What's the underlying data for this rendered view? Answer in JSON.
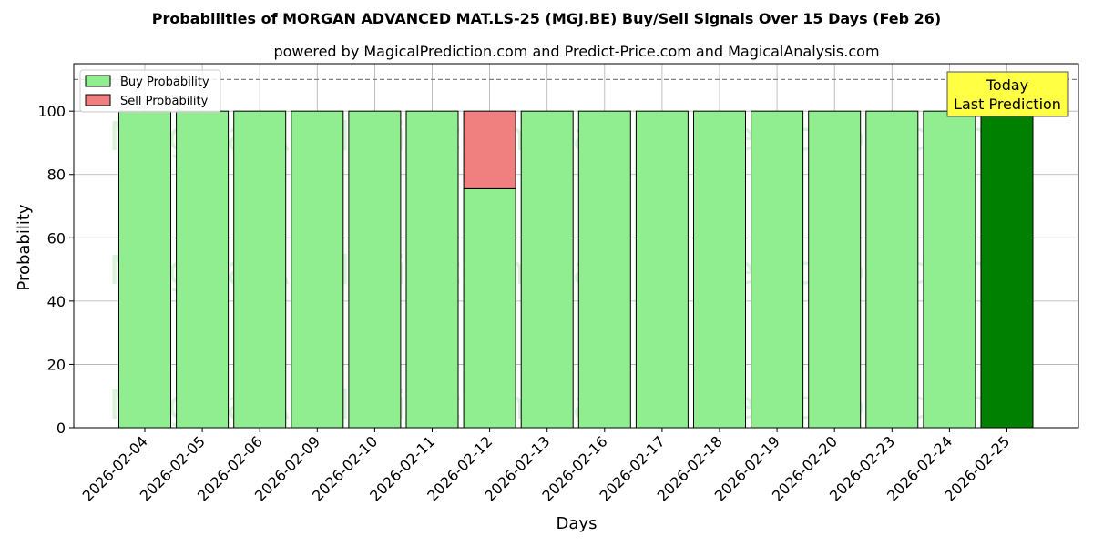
{
  "chart_data": {
    "type": "bar",
    "title": "Probabilities of MORGAN ADVANCED MAT.LS-25 (MGJ.BE) Buy/Sell Signals Over 15 Days (Feb 26)",
    "subtitle": "powered by MagicalPrediction.com and Predict-Price.com and MagicalAnalysis.com",
    "xlabel": "Days",
    "ylabel": "Probability",
    "ylim": [
      0,
      115
    ],
    "yticks": [
      0,
      20,
      40,
      60,
      80,
      100
    ],
    "grid": true,
    "legend_position": "top-left",
    "categories": [
      "2026-02-04",
      "2026-02-05",
      "2026-02-06",
      "2026-02-09",
      "2026-02-10",
      "2026-02-11",
      "2026-02-12",
      "2026-02-13",
      "2026-02-16",
      "2026-02-17",
      "2026-02-18",
      "2026-02-19",
      "2026-02-20",
      "2026-02-23",
      "2026-02-24",
      "2026-02-25"
    ],
    "series": [
      {
        "name": "Buy Probability",
        "color": "#90ee90",
        "values": [
          100,
          100,
          100,
          100,
          100,
          100,
          75.5,
          100,
          100,
          100,
          100,
          100,
          100,
          100,
          100,
          100
        ]
      },
      {
        "name": "Sell Probability",
        "color": "#f08080",
        "values": [
          0,
          0,
          0,
          0,
          0,
          0,
          24.5,
          0,
          0,
          0,
          0,
          0,
          0,
          0,
          0,
          0
        ]
      }
    ],
    "highlight": {
      "index": 15,
      "color": "#008000"
    },
    "reference_line": {
      "y": 110,
      "style": "dashed",
      "color": "#808080"
    },
    "annotation": {
      "lines": [
        "Today",
        "Last Prediction"
      ],
      "background": "#ffff44"
    },
    "watermarks": [
      "MagicalAnalysis.com",
      "MagicalPrediction.com"
    ]
  }
}
